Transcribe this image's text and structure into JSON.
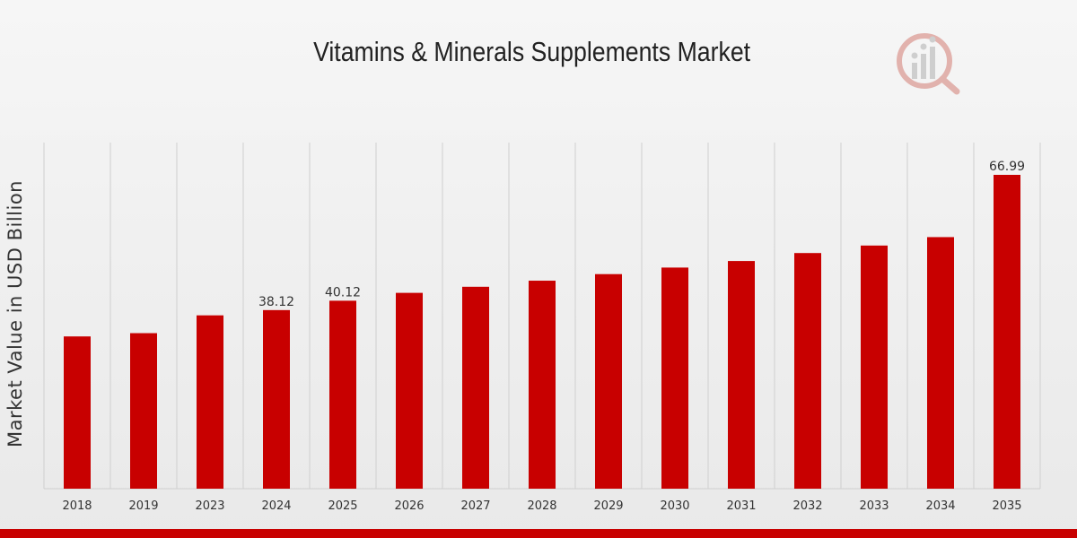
{
  "chart_data": {
    "type": "bar",
    "title": "Vitamins & Minerals Supplements Market",
    "xlabel": "",
    "ylabel": "Market Value in USD Billion",
    "categories": [
      "2018",
      "2019",
      "2023",
      "2024",
      "2025",
      "2026",
      "2027",
      "2028",
      "2029",
      "2030",
      "2031",
      "2032",
      "2033",
      "2034",
      "2035"
    ],
    "values": [
      32.5,
      33.2,
      37.0,
      38.12,
      40.12,
      41.8,
      43.1,
      44.4,
      45.8,
      47.2,
      48.6,
      50.3,
      51.9,
      53.7,
      66.99
    ],
    "data_labels": {
      "2024": "38.12",
      "2025": "40.12",
      "2035": "66.99"
    },
    "ylim": [
      0,
      66.99
    ],
    "grid": "vertical",
    "bar_color": "#c80000"
  },
  "colors": {
    "bottom_bar": "#c80000"
  }
}
